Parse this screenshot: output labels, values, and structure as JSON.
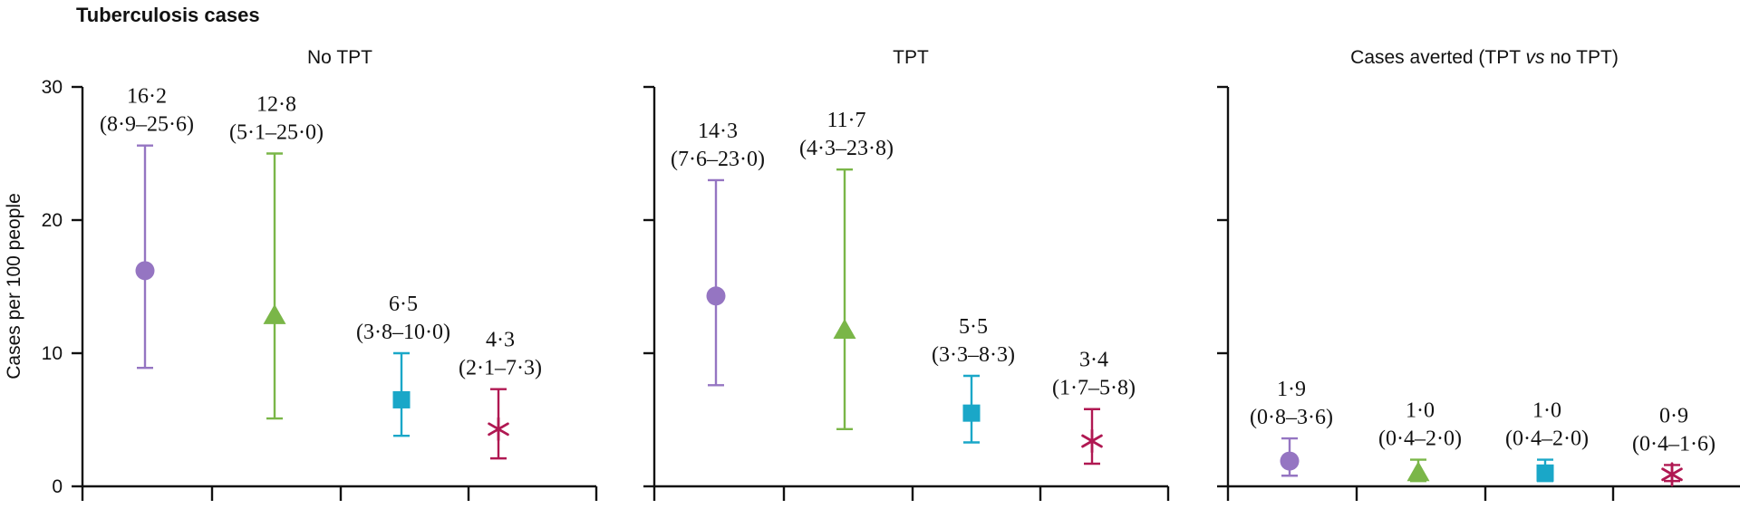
{
  "chart_data": {
    "type": "scatter",
    "title": "Tuberculosis cases",
    "ylabel": "Cases per 100 people",
    "ylim": [
      0,
      30
    ],
    "yticks": [
      "0",
      "10",
      "20",
      "30"
    ],
    "series_colors": [
      "#9575c2",
      "#7ab648",
      "#1aa7c8",
      "#b01852"
    ],
    "series_markers": [
      "circle",
      "triangle",
      "square",
      "asterisk"
    ],
    "panels": [
      {
        "title": "No TPT",
        "points": [
          {
            "value": 16.2,
            "low": 8.9,
            "high": 25.6,
            "label_value": "16·2",
            "label_ci": "(8·9–25·6)"
          },
          {
            "value": 12.8,
            "low": 5.1,
            "high": 25.0,
            "label_value": "12·8",
            "label_ci": "(5·1–25·0)"
          },
          {
            "value": 6.5,
            "low": 3.8,
            "high": 10.0,
            "label_value": "6·5",
            "label_ci": "(3·8–10·0)"
          },
          {
            "value": 4.3,
            "low": 2.1,
            "high": 7.3,
            "label_value": "4·3",
            "label_ci": "(2·1–7·3)"
          }
        ]
      },
      {
        "title": "TPT",
        "points": [
          {
            "value": 14.3,
            "low": 7.6,
            "high": 23.0,
            "label_value": "14·3",
            "label_ci": "(7·6–23·0)"
          },
          {
            "value": 11.7,
            "low": 4.3,
            "high": 23.8,
            "label_value": "11·7",
            "label_ci": "(4·3–23·8)"
          },
          {
            "value": 5.5,
            "low": 3.3,
            "high": 8.3,
            "label_value": "5·5",
            "label_ci": "(3·3–8·3)"
          },
          {
            "value": 3.4,
            "low": 1.7,
            "high": 5.8,
            "label_value": "3·4",
            "label_ci": "(1·7–5·8)"
          }
        ]
      },
      {
        "title_parts": [
          "Cases averted (TPT ",
          "vs",
          " no TPT)"
        ],
        "points": [
          {
            "value": 1.9,
            "low": 0.8,
            "high": 3.6,
            "label_value": "1·9",
            "label_ci": "(0·8–3·6)"
          },
          {
            "value": 1.0,
            "low": 0.4,
            "high": 2.0,
            "label_value": "1·0",
            "label_ci": "(0·4–2·0)"
          },
          {
            "value": 1.0,
            "low": 0.4,
            "high": 2.0,
            "label_value": "1·0",
            "label_ci": "(0·4–2·0)"
          },
          {
            "value": 0.9,
            "low": 0.4,
            "high": 1.6,
            "label_value": "0·9",
            "label_ci": "(0·4–1·6)"
          }
        ]
      }
    ]
  }
}
